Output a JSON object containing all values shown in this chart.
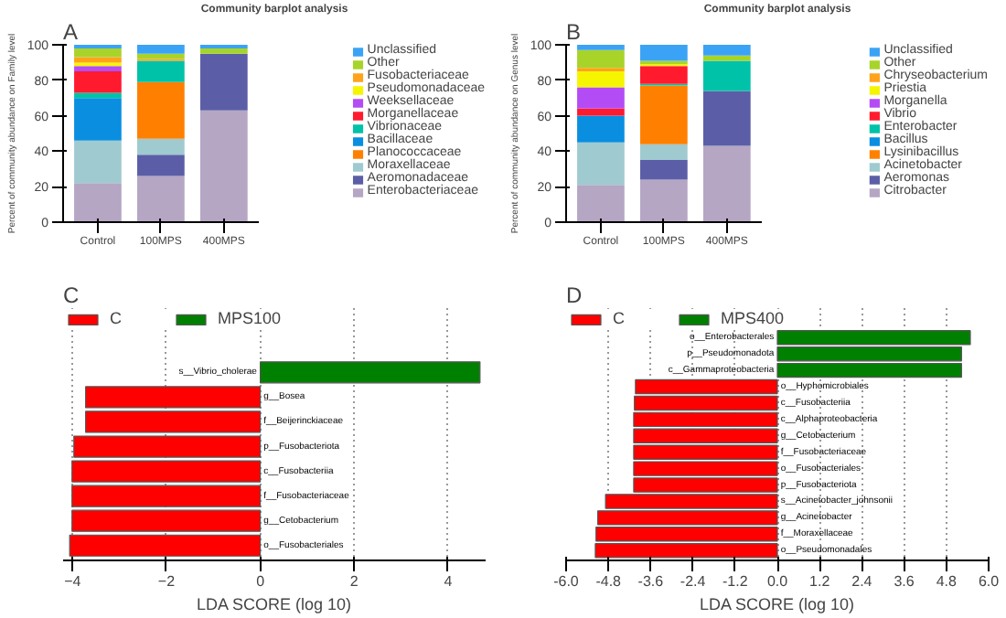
{
  "chart_data": [
    {
      "type": "bar",
      "stacked": true,
      "title": "Community barplot analysis",
      "ylabel": "Percent of community abundance on Family level",
      "annotations": [
        "A"
      ],
      "categories": [
        "Control",
        "100MPS",
        "400MPS"
      ],
      "ylim": [
        0,
        100
      ],
      "yticks": [
        0,
        20,
        40,
        60,
        80,
        100
      ],
      "grid": false,
      "legend": "right",
      "series": [
        {
          "name": "Enterobacteriaceae",
          "color": "#b5a6c4",
          "values": [
            22,
            26,
            63
          ]
        },
        {
          "name": "Aeromonadaceae",
          "color": "#5b5ea6",
          "values": [
            0,
            12,
            32
          ]
        },
        {
          "name": "Moraxellaceae",
          "color": "#9fcad0",
          "values": [
            24,
            9,
            0
          ]
        },
        {
          "name": "Planococcaceae",
          "color": "#ff8000",
          "values": [
            0,
            32,
            0
          ]
        },
        {
          "name": "Bacillaceae",
          "color": "#0a8fe0",
          "values": [
            24,
            0,
            0
          ]
        },
        {
          "name": "Vibrionaceae",
          "color": "#00c2a8",
          "values": [
            3,
            12,
            0
          ]
        },
        {
          "name": "Morganellaceae",
          "color": "#ff1a2e",
          "values": [
            12,
            0,
            0
          ]
        },
        {
          "name": "Weeksellaceae",
          "color": "#b44cf5",
          "values": [
            3,
            0,
            0
          ]
        },
        {
          "name": "Pseudomonadaceae",
          "color": "#f5f500",
          "values": [
            2,
            0,
            0
          ]
        },
        {
          "name": "Fusobacteriaceae",
          "color": "#ffa31a",
          "values": [
            3,
            1,
            0
          ]
        },
        {
          "name": "Other",
          "color": "#a8d42a",
          "values": [
            5,
            3,
            3
          ]
        },
        {
          "name": "Unclassified",
          "color": "#3ba3f5",
          "values": [
            2,
            5,
            2
          ]
        }
      ]
    },
    {
      "type": "bar",
      "stacked": true,
      "title": "Community barplot analysis",
      "ylabel": "Percent of community abundance on Genus level",
      "annotations": [
        "B"
      ],
      "categories": [
        "Control",
        "100MPS",
        "400MPS"
      ],
      "ylim": [
        0,
        100
      ],
      "yticks": [
        0,
        20,
        40,
        60,
        80,
        100
      ],
      "grid": false,
      "legend": "right",
      "series": [
        {
          "name": "Citrobacter",
          "color": "#b5a6c4",
          "values": [
            21,
            24,
            43
          ]
        },
        {
          "name": "Aeromonas",
          "color": "#5b5ea6",
          "values": [
            0,
            11,
            31
          ]
        },
        {
          "name": "Acinetobacter",
          "color": "#9fcad0",
          "values": [
            24,
            9,
            0
          ]
        },
        {
          "name": "Lysinibacillus",
          "color": "#ff8000",
          "values": [
            0,
            33,
            0
          ]
        },
        {
          "name": "Bacillus",
          "color": "#0a8fe0",
          "values": [
            15,
            0,
            0
          ]
        },
        {
          "name": "Enterobacter",
          "color": "#00c2a8",
          "values": [
            0,
            1,
            17
          ]
        },
        {
          "name": "Vibrio",
          "color": "#ff1a2e",
          "values": [
            4,
            10,
            0
          ]
        },
        {
          "name": "Morganella",
          "color": "#b44cf5",
          "values": [
            12,
            0,
            0
          ]
        },
        {
          "name": "Priestia",
          "color": "#f5f500",
          "values": [
            9,
            1,
            0
          ]
        },
        {
          "name": "Chryseobacterium",
          "color": "#ffa31a",
          "values": [
            2,
            0,
            0
          ]
        },
        {
          "name": "Other",
          "color": "#a8d42a",
          "values": [
            10,
            2,
            3
          ]
        },
        {
          "name": "Unclassified",
          "color": "#3ba3f5",
          "values": [
            3,
            9,
            6
          ]
        }
      ]
    },
    {
      "type": "bar",
      "orientation": "horizontal",
      "xlabel": "LDA SCORE (log 10)",
      "annotations": [
        "C"
      ],
      "categories": [
        "s__Vibrio_cholerae",
        "g__Bosea",
        "f__Beijerinckiaceae",
        "p__Fusobacteriota",
        "c__Fusobacteriia",
        "f__Fusobacteriaceae",
        "g__Cetobacterium",
        "o__Fusobacteriales"
      ],
      "xlim": [
        -4.2,
        4.8
      ],
      "xticks": [
        -4,
        -2,
        0,
        2,
        4
      ],
      "grid": "x",
      "legend": "top left",
      "tick_labels": "x",
      "series": [
        {
          "name": "C",
          "color": "#ff0000",
          "values": [
            null,
            -3.72,
            -3.72,
            -3.97,
            -4.01,
            -4.01,
            -4.01,
            -4.06
          ]
        },
        {
          "name": "MPS100",
          "color": "#008000",
          "values": [
            4.68,
            null,
            null,
            null,
            null,
            null,
            null,
            null
          ]
        }
      ]
    },
    {
      "type": "bar",
      "orientation": "horizontal",
      "xlabel": "LDA SCORE (log 10)",
      "annotations": [
        "D"
      ],
      "categories": [
        "o__Enterobacterales",
        "p__Pseudomonadota",
        "c__Gammaproteobacteria",
        "o__Hyphomicrobiales",
        "c__Fusobacteriia",
        "c__Alphaproteobacteria",
        "g__Cetobacterium",
        "f__Fusobacteriaceae",
        "o__Fusobacteriales",
        "p__Fusobacteriota",
        "s__Acinetobacter_johnsonii",
        "g__Acinetobacter",
        "f__Moraxellaceae",
        "o__Pseudomonadales"
      ],
      "xlim": [
        -6.0,
        6.0
      ],
      "xticks": [
        {
          "value": -6,
          "label": "-6.0"
        },
        {
          "value": -4.8,
          "label": "-4.8"
        },
        {
          "value": -3.6,
          "label": "-3.6"
        },
        {
          "value": -2.4,
          "label": "-2.4"
        },
        {
          "value": -1.2,
          "label": "-1.2"
        },
        {
          "value": 0,
          "label": "0.0"
        },
        {
          "value": 1.2,
          "label": "1.2"
        },
        {
          "value": 2.4,
          "label": "2.4"
        },
        {
          "value": 3.6,
          "label": "3.6"
        },
        {
          "value": 4.8,
          "label": "4.8"
        },
        {
          "value": 6,
          "label": "6.0"
        }
      ],
      "grid": "x",
      "legend": "top left",
      "tick_labels": "x",
      "series": [
        {
          "name": "C",
          "color": "#ff0000",
          "values": [
            null,
            null,
            null,
            -4.03,
            -4.06,
            -4.08,
            -4.08,
            -4.08,
            -4.08,
            -4.08,
            -4.88,
            -5.1,
            -5.15,
            -5.17
          ]
        },
        {
          "name": "MPS400",
          "color": "#008000",
          "values": [
            5.48,
            5.23,
            5.23,
            null,
            null,
            null,
            null,
            null,
            null,
            null,
            null,
            null,
            null,
            null
          ]
        }
      ]
    }
  ]
}
